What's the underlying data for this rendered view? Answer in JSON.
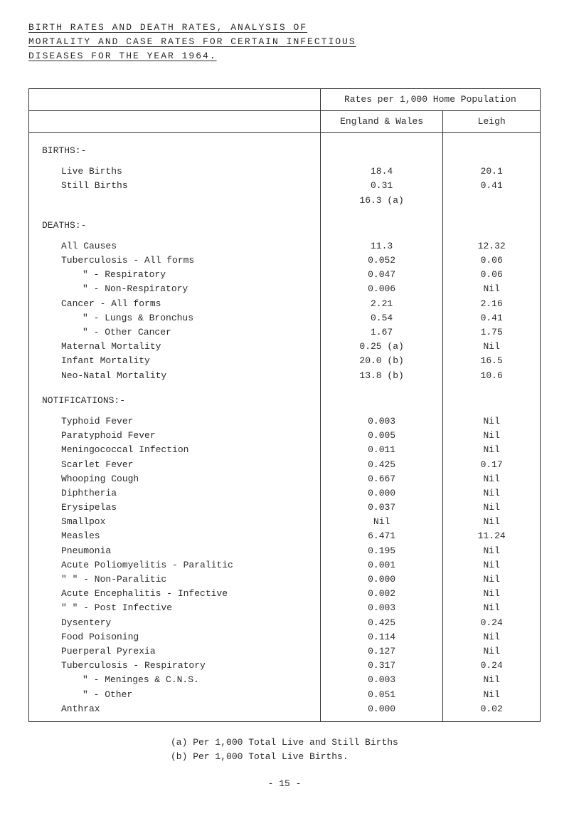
{
  "title": {
    "line1": "BIRTH  RATES  AND  DEATH  RATES,  ANALYSIS  OF",
    "line2": "MORTALITY  AND  CASE  RATES  FOR  CERTAIN  INFECTIOUS",
    "line3": "DISEASES  FOR  THE  YEAR  1964."
  },
  "headers": {
    "rates": "Rates per 1,000 Home Population",
    "england": "England & Wales",
    "leigh": "Leigh"
  },
  "sections": {
    "births": "BIRTHS:-",
    "deaths": "DEATHS:-",
    "notifications": "NOTIFICATIONS:-"
  },
  "rows": [
    {
      "label": "Live Births",
      "indent": 1,
      "eng": "18.4",
      "leigh": "20.1"
    },
    {
      "label": "Still Births",
      "indent": 1,
      "eng": "0.31",
      "leigh": "0.41"
    },
    {
      "label": "",
      "indent": 1,
      "eng": "16.3  (a)",
      "leigh": ""
    },
    {
      "label": "All Causes",
      "indent": 1,
      "eng": "11.3",
      "leigh": "12.32"
    },
    {
      "label": "Tuberculosis - All forms",
      "indent": 1,
      "eng": "0.052",
      "leigh": "0.06"
    },
    {
      "label": "\"         - Respiratory",
      "indent": 2,
      "eng": "0.047",
      "leigh": "0.06"
    },
    {
      "label": "\"         - Non-Respiratory",
      "indent": 2,
      "eng": "0.006",
      "leigh": "Nil"
    },
    {
      "label": "Cancer       - All forms",
      "indent": 1,
      "eng": "2.21",
      "leigh": "2.16"
    },
    {
      "label": "\"         - Lungs & Bronchus",
      "indent": 2,
      "eng": "0.54",
      "leigh": "0.41"
    },
    {
      "label": "\"         - Other Cancer",
      "indent": 2,
      "eng": "1.67",
      "leigh": "1.75"
    },
    {
      "label": "Maternal Mortality",
      "indent": 1,
      "eng": "0.25 (a)",
      "leigh": "Nil"
    },
    {
      "label": "Infant Mortality",
      "indent": 1,
      "eng": "20.0  (b)",
      "leigh": "16.5"
    },
    {
      "label": "Neo-Natal Mortality",
      "indent": 1,
      "eng": "13.8  (b)",
      "leigh": "10.6"
    },
    {
      "label": "Typhoid Fever",
      "indent": 1,
      "eng": "0.003",
      "leigh": "Nil"
    },
    {
      "label": "Paratyphoid Fever",
      "indent": 1,
      "eng": "0.005",
      "leigh": "Nil"
    },
    {
      "label": "Meningococcal Infection",
      "indent": 1,
      "eng": "0.011",
      "leigh": "Nil"
    },
    {
      "label": "Scarlet Fever",
      "indent": 1,
      "eng": "0.425",
      "leigh": "0.17"
    },
    {
      "label": "Whooping Cough",
      "indent": 1,
      "eng": "0.667",
      "leigh": "Nil"
    },
    {
      "label": "Diphtheria",
      "indent": 1,
      "eng": "0.000",
      "leigh": "Nil"
    },
    {
      "label": "Erysipelas",
      "indent": 1,
      "eng": "0.037",
      "leigh": "Nil"
    },
    {
      "label": "Smallpox",
      "indent": 1,
      "eng": "Nil",
      "leigh": "Nil"
    },
    {
      "label": "Measles",
      "indent": 1,
      "eng": "6.471",
      "leigh": "11.24"
    },
    {
      "label": "Pneumonia",
      "indent": 1,
      "eng": "0.195",
      "leigh": "Nil"
    },
    {
      "label": "Acute Poliomyelitis - Paralitic",
      "indent": 1,
      "eng": "0.001",
      "leigh": "Nil"
    },
    {
      "label": "\"        \"        - Non-Paralitic",
      "indent": 1,
      "eng": "0.000",
      "leigh": "Nil"
    },
    {
      "label": "Acute Encephalitis  - Infective",
      "indent": 1,
      "eng": "0.002",
      "leigh": "Nil"
    },
    {
      "label": "\"        \"        - Post Infective",
      "indent": 1,
      "eng": "0.003",
      "leigh": "Nil"
    },
    {
      "label": "Dysentery",
      "indent": 1,
      "eng": "0.425",
      "leigh": "0.24"
    },
    {
      "label": "Food Poisoning",
      "indent": 1,
      "eng": "0.114",
      "leigh": "Nil"
    },
    {
      "label": "Puerperal Pyrexia",
      "indent": 1,
      "eng": "0.127",
      "leigh": "Nil"
    },
    {
      "label": "Tuberculosis - Respiratory",
      "indent": 1,
      "eng": "0.317",
      "leigh": "0.24"
    },
    {
      "label": "\"         - Meninges & C.N.S.",
      "indent": 2,
      "eng": "0.003",
      "leigh": "Nil"
    },
    {
      "label": "\"         - Other",
      "indent": 2,
      "eng": "0.051",
      "leigh": "Nil"
    },
    {
      "label": "Anthrax",
      "indent": 1,
      "eng": "0.000",
      "leigh": "0.02"
    }
  ],
  "footnotes": {
    "a": "(a)   Per 1,000 Total Live and Still Births",
    "b": "(b)   Per 1,000 Total Live Births."
  },
  "pageNum": "- 15 -"
}
